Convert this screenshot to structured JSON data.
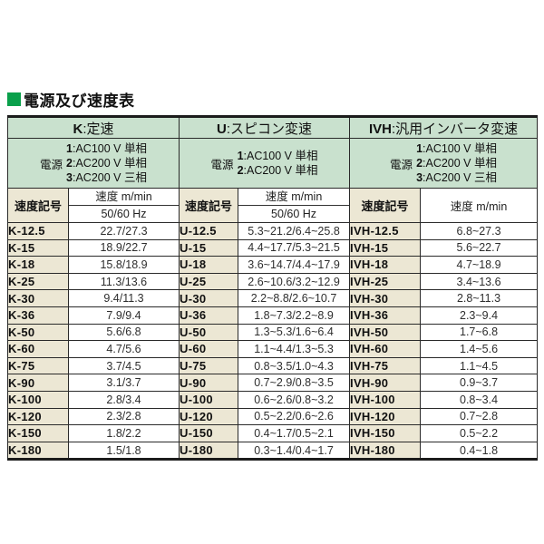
{
  "title": "電源及び速度表",
  "colors": {
    "header_bg": "#c9e1ce",
    "code_bg": "#ece7d4",
    "title_square": "#0aa04b",
    "border": "#1c1c1c"
  },
  "groups": [
    {
      "code": "K",
      "header_label": ":定速",
      "power": {
        "label": "電源",
        "lines": [
          {
            "n": "1",
            "t": "AC100 V 単相"
          },
          {
            "n": "2",
            "t": "AC200 V 単相"
          },
          {
            "n": "3",
            "t": "AC200 V 三相"
          }
        ]
      },
      "code_header": "速度記号",
      "speed_header": [
        "速度 m/min",
        "50/60 Hz"
      ],
      "rows": [
        [
          "K-12.5",
          "22.7/27.3"
        ],
        [
          "K-15",
          "18.9/22.7"
        ],
        [
          "K-18",
          "15.8/18.9"
        ],
        [
          "K-25",
          "11.3/13.6"
        ],
        [
          "K-30",
          "9.4/11.3"
        ],
        [
          "K-36",
          "7.9/9.4"
        ],
        [
          "K-50",
          "5.6/6.8"
        ],
        [
          "K-60",
          "4.7/5.6"
        ],
        [
          "K-75",
          "3.7/4.5"
        ],
        [
          "K-90",
          "3.1/3.7"
        ],
        [
          "K-100",
          "2.8/3.4"
        ],
        [
          "K-120",
          "2.3/2.8"
        ],
        [
          "K-150",
          "1.8/2.2"
        ],
        [
          "K-180",
          "1.5/1.8"
        ]
      ]
    },
    {
      "code": "U",
      "header_label": ":スピコン変速",
      "power": {
        "label": "電源",
        "lines": [
          {
            "n": "1",
            "t": "AC100 V 単相"
          },
          {
            "n": "2",
            "t": "AC200 V 単相"
          }
        ]
      },
      "code_header": "速度記号",
      "speed_header": [
        "速度 m/min",
        "50/60 Hz"
      ],
      "rows": [
        [
          "U-12.5",
          "5.3~21.2/6.4~25.8"
        ],
        [
          "U-15",
          "4.4~17.7/5.3~21.5"
        ],
        [
          "U-18",
          "3.6~14.7/4.4~17.9"
        ],
        [
          "U-25",
          "2.6~10.6/3.2~12.9"
        ],
        [
          "U-30",
          "2.2~8.8/2.6~10.7"
        ],
        [
          "U-36",
          "1.8~7.3/2.2~8.9"
        ],
        [
          "U-50",
          "1.3~5.3/1.6~6.4"
        ],
        [
          "U-60",
          "1.1~4.4/1.3~5.3"
        ],
        [
          "U-75",
          "0.8~3.5/1.0~4.3"
        ],
        [
          "U-90",
          "0.7~2.9/0.8~3.5"
        ],
        [
          "U-100",
          "0.6~2.6/0.8~3.2"
        ],
        [
          "U-120",
          "0.5~2.2/0.6~2.6"
        ],
        [
          "U-150",
          "0.4~1.7/0.5~2.1"
        ],
        [
          "U-180",
          "0.3~1.4/0.4~1.7"
        ]
      ]
    },
    {
      "code": "IVH",
      "header_label": ":汎用インバータ変速",
      "power": {
        "label": "電源",
        "lines": [
          {
            "n": "1",
            "t": "AC100 V 単相"
          },
          {
            "n": "2",
            "t": "AC200 V 単相"
          },
          {
            "n": "3",
            "t": "AC200 V 三相"
          }
        ]
      },
      "code_header": "速度記号",
      "speed_header": [
        "速度 m/min"
      ],
      "rows": [
        [
          "IVH-12.5",
          "6.8~27.3"
        ],
        [
          "IVH-15",
          "5.6~22.7"
        ],
        [
          "IVH-18",
          "4.7~18.9"
        ],
        [
          "IVH-25",
          "3.4~13.6"
        ],
        [
          "IVH-30",
          "2.8~11.3"
        ],
        [
          "IVH-36",
          "2.3~9.4"
        ],
        [
          "IVH-50",
          "1.7~6.8"
        ],
        [
          "IVH-60",
          "1.4~5.6"
        ],
        [
          "IVH-75",
          "1.1~4.5"
        ],
        [
          "IVH-90",
          "0.9~3.7"
        ],
        [
          "IVH-100",
          "0.8~3.4"
        ],
        [
          "IVH-120",
          "0.7~2.8"
        ],
        [
          "IVH-150",
          "0.5~2.2"
        ],
        [
          "IVH-180",
          "0.4~1.8"
        ]
      ]
    }
  ]
}
